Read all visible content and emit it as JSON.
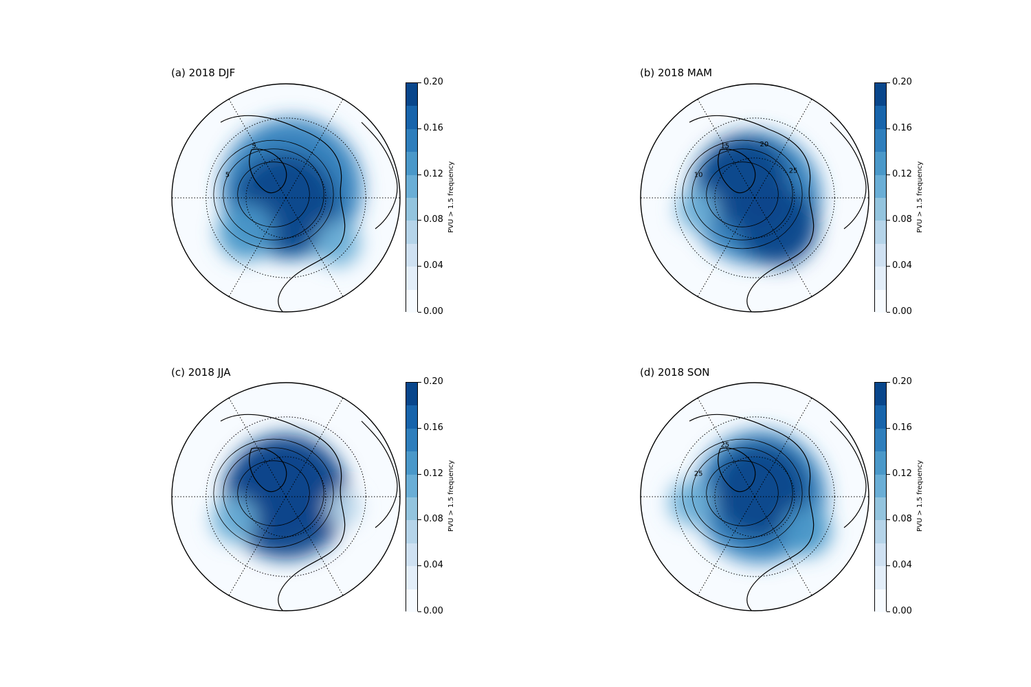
{
  "colorbar": {
    "label": "PVU > 1.5 frequency",
    "ticks": [
      "0.20",
      "0.16",
      "0.12",
      "0.08",
      "0.04",
      "0.00"
    ],
    "tick_values": [
      0.2,
      0.16,
      0.12,
      0.08,
      0.04,
      0.0
    ],
    "range": [
      0.0,
      0.2
    ],
    "levels": 10,
    "colors": [
      "#f7fbff",
      "#e3eef9",
      "#cfe1f2",
      "#b5d4e9",
      "#93c4de",
      "#6aaed6",
      "#4a98c9",
      "#2e7ebc",
      "#1764ab",
      "#08468b"
    ]
  },
  "panels": [
    {
      "id": "a",
      "title": "(a) 2018 DJF",
      "contour_labels": [
        "5",
        "5"
      ],
      "blobs": [
        {
          "dx": 0.05,
          "dy": -0.08,
          "r": 0.62,
          "v": 0.16
        },
        {
          "dx": 0.0,
          "dy": 0.05,
          "r": 0.45,
          "v": 0.2
        },
        {
          "dx": -0.35,
          "dy": 0.3,
          "r": 0.25,
          "v": 0.12
        },
        {
          "dx": 0.45,
          "dy": 0.4,
          "r": 0.2,
          "v": 0.1
        }
      ]
    },
    {
      "id": "b",
      "title": "(b) 2018 MAM",
      "contour_labels": [
        "10",
        "15",
        "20",
        "25"
      ],
      "blobs": [
        {
          "dx": 0.0,
          "dy": 0.0,
          "r": 0.58,
          "v": 0.16
        },
        {
          "dx": -0.1,
          "dy": -0.15,
          "r": 0.4,
          "v": 0.2
        },
        {
          "dx": 0.2,
          "dy": 0.25,
          "r": 0.35,
          "v": 0.18
        },
        {
          "dx": -0.5,
          "dy": 0.1,
          "r": 0.18,
          "v": 0.1
        }
      ]
    },
    {
      "id": "c",
      "title": "(c) 2018 JJA",
      "contour_labels": [],
      "blobs": [
        {
          "dx": 0.0,
          "dy": 0.0,
          "r": 0.55,
          "v": 0.18
        },
        {
          "dx": -0.05,
          "dy": -0.05,
          "r": 0.42,
          "v": 0.2
        },
        {
          "dx": -0.45,
          "dy": 0.2,
          "r": 0.2,
          "v": 0.1
        },
        {
          "dx": 0.5,
          "dy": 0.1,
          "r": 0.15,
          "v": 0.06
        }
      ]
    },
    {
      "id": "d",
      "title": "(d) 2018 SON",
      "contour_labels": [
        "25",
        "25"
      ],
      "blobs": [
        {
          "dx": 0.05,
          "dy": 0.0,
          "r": 0.58,
          "v": 0.16
        },
        {
          "dx": 0.05,
          "dy": -0.05,
          "r": 0.42,
          "v": 0.2
        },
        {
          "dx": -0.55,
          "dy": 0.05,
          "r": 0.2,
          "v": 0.1
        },
        {
          "dx": 0.45,
          "dy": 0.3,
          "r": 0.22,
          "v": 0.12
        }
      ]
    }
  ]
}
